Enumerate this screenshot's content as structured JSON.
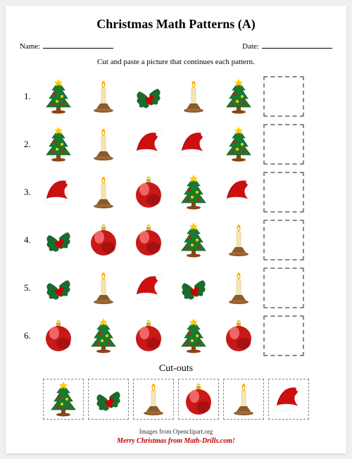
{
  "title": "Christmas Math Patterns (A)",
  "name_label": "Name:",
  "date_label": "Date:",
  "instructions": "Cut and paste a picture that continues each pattern.",
  "cutouts_title": "Cut-outs",
  "credit": "Images from Openclipart.org",
  "footer": "Merry Christmas from Math-Drills.com!",
  "icon_size": 50,
  "colors": {
    "tree_green": "#1a7a2e",
    "tree_dark": "#0d5a1e",
    "tree_trunk": "#8b4513",
    "tree_star": "#ffcc00",
    "ornament_red": "#d01818",
    "ornament_yellow": "#ffcc00",
    "candle_base": "#8b5a2b",
    "candle_stick": "#f5e6b3",
    "candle_flame": "#ffaa00",
    "holly_green": "#1a6b2e",
    "holly_berry": "#cc0000",
    "hat_red": "#cc1010",
    "hat_white": "#ffffff",
    "bauble_red": "#c81818",
    "bauble_dark": "#8a0808",
    "bauble_shine": "#ff8888",
    "bauble_cap": "#d4b030"
  },
  "rows": [
    {
      "num": "1.",
      "items": [
        "tree",
        "candle",
        "holly",
        "candle",
        "tree"
      ]
    },
    {
      "num": "2.",
      "items": [
        "tree",
        "candle",
        "hat",
        "hat",
        "tree"
      ]
    },
    {
      "num": "3.",
      "items": [
        "hat",
        "candle",
        "bauble",
        "tree",
        "hat"
      ]
    },
    {
      "num": "4.",
      "items": [
        "holly",
        "bauble",
        "bauble",
        "tree",
        "candle"
      ]
    },
    {
      "num": "5.",
      "items": [
        "holly",
        "candle",
        "hat",
        "holly",
        "candle"
      ]
    },
    {
      "num": "6.",
      "items": [
        "bauble",
        "tree",
        "bauble",
        "tree",
        "bauble"
      ]
    }
  ],
  "cutouts": [
    "tree",
    "holly",
    "candle",
    "bauble",
    "candle",
    "hat"
  ]
}
